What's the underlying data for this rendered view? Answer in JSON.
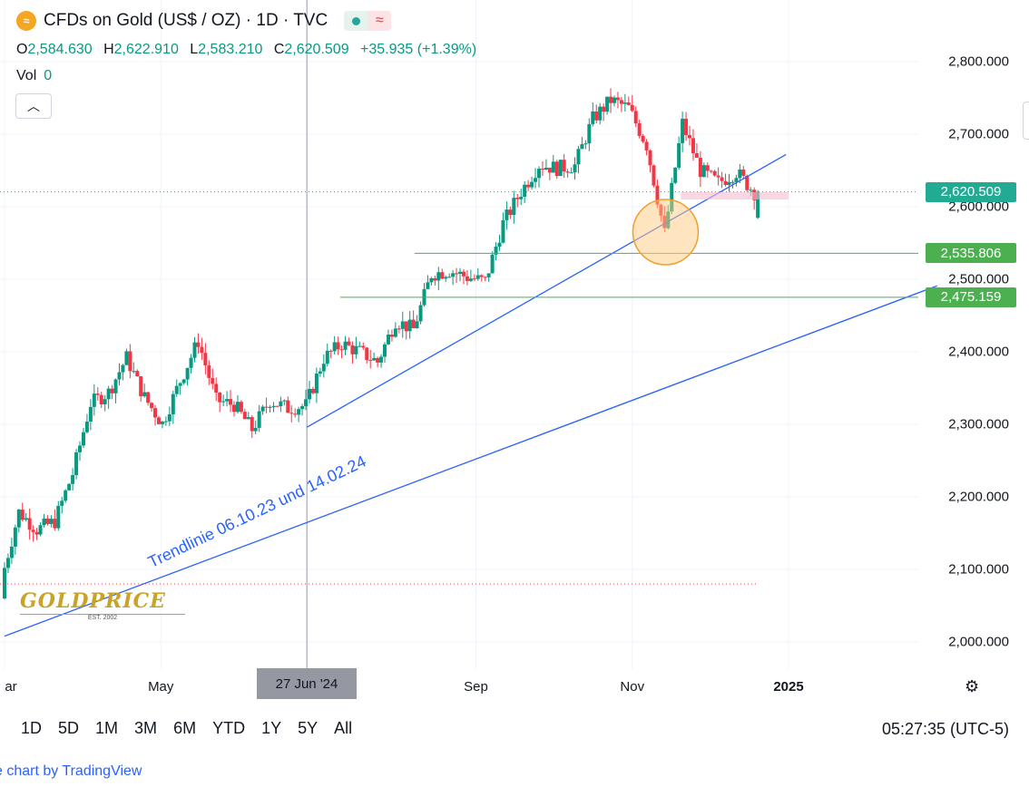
{
  "header": {
    "title": "CFDs on Gold (US$ / OZ) · 1D · TVC",
    "ohlc": {
      "o_label": "O",
      "o": "2,584.630",
      "h_label": "H",
      "h": "2,622.910",
      "l_label": "L",
      "l": "2,583.210",
      "c_label": "C",
      "c": "2,620.509",
      "chg": "+35.935 (+1.39%)"
    },
    "vol_label": "Vol",
    "vol_value": "0"
  },
  "colors": {
    "up": "#089981",
    "down": "#f23645",
    "trend": "#2962ff",
    "support": "#4caf50",
    "accent": "#2962ff"
  },
  "price_tags": [
    {
      "value": "2,620.509",
      "color": "#22ab94"
    },
    {
      "value": "2,535.806",
      "color": "#4caf50"
    },
    {
      "value": "2,475.159",
      "color": "#4caf50"
    }
  ],
  "x_highlight": "27 Jun '24",
  "annotation": "Trendlinie 06.10.23 und 14.02.24",
  "logo": {
    "name": "GOLDPRICE",
    "sub": "EST. 2002"
  },
  "time_ranges": [
    "1D",
    "5D",
    "1M",
    "3M",
    "6M",
    "YTD",
    "1Y",
    "5Y",
    "All"
  ],
  "clock": "05:27:35 (UTC-5)",
  "footer": "e chart by TradingView",
  "chart_data": {
    "type": "candlestick",
    "title": "CFDs on Gold (US$ / OZ) · 1D · TVC",
    "y_ticks": [
      "2,800.000",
      "2,700.000",
      "2,600.000",
      "2,500.000",
      "2,400.000",
      "2,300.000",
      "2,200.000",
      "2,100.000",
      "2,000.000"
    ],
    "ylim": [
      1980,
      2855
    ],
    "x_ticks": [
      "ar",
      "May",
      "Sep",
      "Nov",
      "2025"
    ],
    "x_range": [
      "2024-03-01",
      "2025-02-28"
    ],
    "x_tick_dates": [
      "2024-03-01",
      "2024-05-01",
      "2024-09-01",
      "2024-11-01",
      "2025-01-01"
    ],
    "highlighted_date": "2024-06-27",
    "closes_weekly": [
      [
        "2024-03-01",
        2083
      ],
      [
        "2024-03-08",
        2179
      ],
      [
        "2024-03-15",
        2155
      ],
      [
        "2024-03-22",
        2166
      ],
      [
        "2024-03-29",
        2232
      ],
      [
        "2024-04-05",
        2329
      ],
      [
        "2024-04-12",
        2344
      ],
      [
        "2024-04-19",
        2392
      ],
      [
        "2024-04-26",
        2337
      ],
      [
        "2024-05-03",
        2301
      ],
      [
        "2024-05-10",
        2360
      ],
      [
        "2024-05-17",
        2415
      ],
      [
        "2024-05-24",
        2333
      ],
      [
        "2024-05-31",
        2327
      ],
      [
        "2024-06-07",
        2293
      ],
      [
        "2024-06-14",
        2333
      ],
      [
        "2024-06-21",
        2322
      ],
      [
        "2024-06-28",
        2326
      ],
      [
        "2024-07-05",
        2391
      ],
      [
        "2024-07-12",
        2411
      ],
      [
        "2024-07-19",
        2400
      ],
      [
        "2024-07-26",
        2386
      ],
      [
        "2024-08-02",
        2443
      ],
      [
        "2024-08-09",
        2431
      ],
      [
        "2024-08-16",
        2507
      ],
      [
        "2024-08-23",
        2512
      ],
      [
        "2024-08-30",
        2503
      ],
      [
        "2024-09-06",
        2497
      ],
      [
        "2024-09-13",
        2577
      ],
      [
        "2024-09-20",
        2621
      ],
      [
        "2024-09-27",
        2658
      ],
      [
        "2024-10-04",
        2653
      ],
      [
        "2024-10-11",
        2657
      ],
      [
        "2024-10-18",
        2721
      ],
      [
        "2024-10-25",
        2747
      ],
      [
        "2024-11-01",
        2736
      ],
      [
        "2024-11-08",
        2685
      ],
      [
        "2024-11-15",
        2563
      ],
      [
        "2024-11-22",
        2715
      ],
      [
        "2024-11-29",
        2650
      ],
      [
        "2024-12-06",
        2633
      ],
      [
        "2024-12-13",
        2648
      ],
      [
        "2024-12-20",
        2620
      ]
    ],
    "support_levels": [
      2535.806,
      2475.159
    ],
    "last_price": 2620.509,
    "horizontal_dotted_level": 2080,
    "trendlines": [
      {
        "from": [
          "2024-06-27",
          2296
        ],
        "to": [
          "2024-12-31",
          2672
        ]
      },
      {
        "from": [
          "2024-03-01",
          2008
        ],
        "to": [
          "2025-02-28",
          2491
        ]
      }
    ]
  }
}
